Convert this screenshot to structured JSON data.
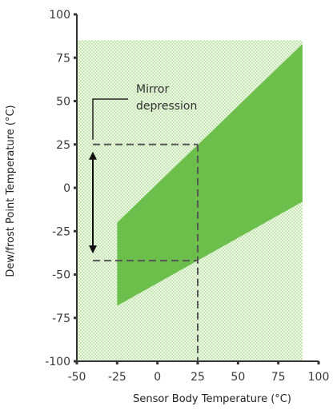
{
  "chart_data": {
    "type": "area",
    "title": "",
    "xlabel": "Sensor Body Temperature (°C)",
    "ylabel": "Dew/frost Point Temperature (°C)",
    "xlim": [
      -50,
      100
    ],
    "ylim": [
      -100,
      100
    ],
    "x_ticks": [
      -50,
      -25,
      0,
      25,
      50,
      75,
      100
    ],
    "y_ticks": [
      100,
      75,
      50,
      25,
      0,
      -25,
      -50,
      -75,
      -100
    ],
    "x_tick_labels": [
      "-50",
      "-25",
      "0",
      "25",
      "50",
      "75",
      "100"
    ],
    "y_tick_labels": [
      "100",
      "75",
      "50",
      "25",
      "0",
      "-25",
      "-50",
      "-75",
      "-100"
    ],
    "background_region": {
      "x": [
        -50,
        90
      ],
      "y": [
        -100,
        85
      ],
      "fill": "dotted light green"
    },
    "operating_region": {
      "polygon": [
        [
          -25,
          -20
        ],
        [
          90,
          83
        ],
        [
          90,
          -8
        ],
        [
          -25,
          -68
        ]
      ],
      "color": "#6cbf4a"
    },
    "example": {
      "sensor_temp": 25,
      "upper_dew_point": 25,
      "lower_dew_point": -42,
      "annotation": [
        "Mirror",
        "depression"
      ]
    },
    "grid": false,
    "colors": {
      "region": "#6cbf4a",
      "dots": "#a9d98e",
      "dash": "#555555",
      "axis": "#333333"
    }
  }
}
